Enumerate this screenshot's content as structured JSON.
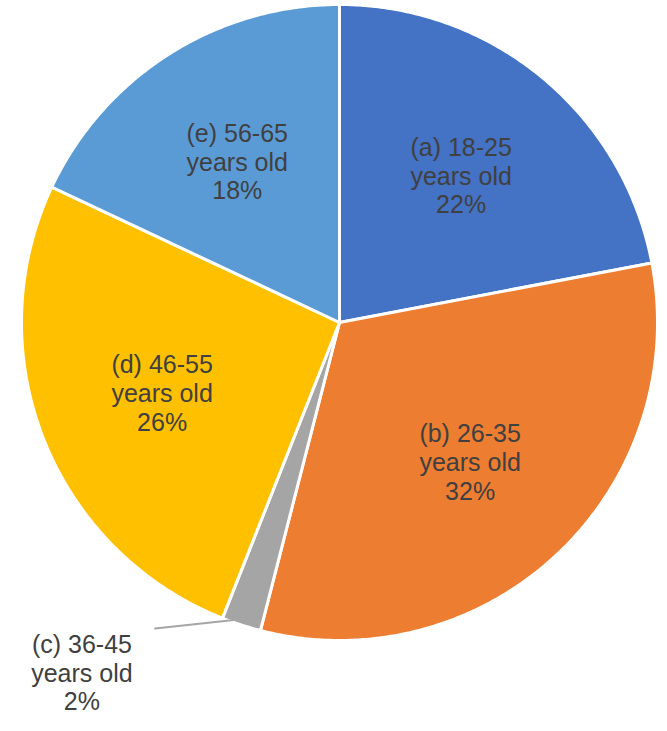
{
  "chart_data": {
    "type": "pie",
    "categories": [
      "(a) 18-25 years old",
      "(b) 26-35 years old",
      "(c) 36-45 years old",
      "(d) 46-55 years old",
      "(e) 56-65 years old"
    ],
    "values": [
      22,
      32,
      2,
      26,
      18
    ],
    "value_labels": [
      "22%",
      "32%",
      "2%",
      "26%",
      "18%"
    ],
    "colors": [
      "#4472c4",
      "#ed7d31",
      "#a5a5a5",
      "#ffc000",
      "#5b9bd5"
    ],
    "data_labels": true
  }
}
